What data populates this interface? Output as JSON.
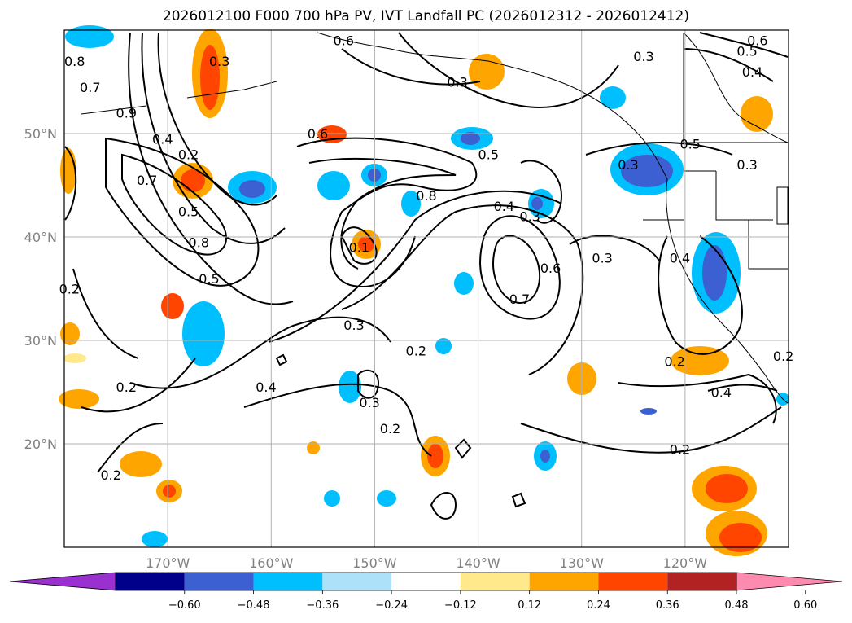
{
  "title": "2026012100 F000 700 hPa PV, IVT Landfall PC (2026012312 - 2026012412)",
  "map": {
    "lon_range": [
      -180,
      -110
    ],
    "lat_range": [
      10,
      60
    ],
    "lat_labels": [
      "50°N",
      "40°N",
      "30°N",
      "20°N"
    ],
    "lat_values": [
      50,
      40,
      30,
      20
    ],
    "lon_labels": [
      "170°W",
      "160°W",
      "150°W",
      "140°W",
      "130°W",
      "120°W"
    ],
    "lon_values": [
      -170,
      -160,
      -150,
      -140,
      -130,
      -120
    ],
    "grid": true,
    "gridline_color": "#b0b0b0"
  },
  "contour_labels": [
    {
      "text": "0.8",
      "lon": -179,
      "lat": 57
    },
    {
      "text": "0.7",
      "lon": -177.5,
      "lat": 54.5
    },
    {
      "text": "0.9",
      "lon": -174,
      "lat": 52
    },
    {
      "text": "0.4",
      "lon": -170.5,
      "lat": 49.5
    },
    {
      "text": "0.7",
      "lon": -172,
      "lat": 45.5
    },
    {
      "text": "0.2",
      "lon": -168,
      "lat": 48
    },
    {
      "text": "0.5",
      "lon": -168,
      "lat": 42.5
    },
    {
      "text": "0.8",
      "lon": -167,
      "lat": 39.5
    },
    {
      "text": "0.5",
      "lon": -166,
      "lat": 36
    },
    {
      "text": "0.2",
      "lon": -179.5,
      "lat": 35
    },
    {
      "text": "0.3",
      "lon": -165,
      "lat": 57
    },
    {
      "text": "0.6",
      "lon": -153,
      "lat": 59
    },
    {
      "text": "0.3",
      "lon": -142,
      "lat": 55
    },
    {
      "text": "0.6",
      "lon": -155.5,
      "lat": 50
    },
    {
      "text": "0.5",
      "lon": -139,
      "lat": 48
    },
    {
      "text": "0.8",
      "lon": -145,
      "lat": 44
    },
    {
      "text": "0.4",
      "lon": -137.5,
      "lat": 43
    },
    {
      "text": "0.3",
      "lon": -135,
      "lat": 42
    },
    {
      "text": "0.6",
      "lon": -133,
      "lat": 37
    },
    {
      "text": "0.7",
      "lon": -136,
      "lat": 34
    },
    {
      "text": "0.3",
      "lon": -128,
      "lat": 38
    },
    {
      "text": "0.3",
      "lon": -125.5,
      "lat": 47
    },
    {
      "text": "0.5",
      "lon": -119.5,
      "lat": 49
    },
    {
      "text": "0.3",
      "lon": -114,
      "lat": 47
    },
    {
      "text": "0.4",
      "lon": -120.5,
      "lat": 38
    },
    {
      "text": "0.4",
      "lon": -113.5,
      "lat": 56
    },
    {
      "text": "0.5",
      "lon": -114,
      "lat": 58
    },
    {
      "text": "0.6",
      "lon": -113,
      "lat": 59
    },
    {
      "text": "0.3",
      "lon": -124,
      "lat": 57.5
    },
    {
      "text": "0.1",
      "lon": -151.5,
      "lat": 39
    },
    {
      "text": "0.3",
      "lon": -152,
      "lat": 31.5
    },
    {
      "text": "0.2",
      "lon": -146,
      "lat": 29
    },
    {
      "text": "0.4",
      "lon": -160.5,
      "lat": 25.5
    },
    {
      "text": "0.3",
      "lon": -150.5,
      "lat": 24
    },
    {
      "text": "0.2",
      "lon": -174,
      "lat": 25.5
    },
    {
      "text": "0.2",
      "lon": -148.5,
      "lat": 21.5
    },
    {
      "text": "0.2",
      "lon": -121,
      "lat": 28
    },
    {
      "text": "0.4",
      "lon": -116.5,
      "lat": 25
    },
    {
      "text": "0.2",
      "lon": -120.5,
      "lat": 19.5
    },
    {
      "text": "0.2",
      "lon": -175.5,
      "lat": 17
    },
    {
      "text": "0.2",
      "lon": -110.5,
      "lat": 28.5
    }
  ],
  "colorbar": {
    "ticks": [
      "−0.60",
      "−0.48",
      "−0.36",
      "−0.24",
      "−0.12",
      "0.12",
      "0.24",
      "0.36",
      "0.48",
      "0.60"
    ],
    "colors": [
      "#9b30d0",
      "#00008b",
      "#3c5fd2",
      "#00bfff",
      "#ade1fa",
      "#ffffff",
      "#ffe98a",
      "#ffa500",
      "#ff4500",
      "#b22222",
      "#ff8ab0"
    ]
  }
}
